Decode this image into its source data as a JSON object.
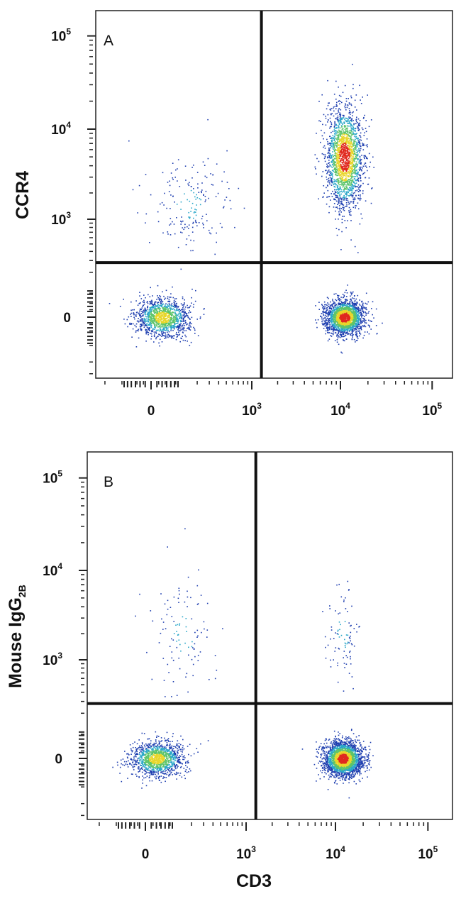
{
  "chart_data": [
    {
      "panel": "A",
      "type": "scatter",
      "subtype": "flow-cytometry-density-dot-plot",
      "xlabel": "",
      "ylabel": "CCR4",
      "x_scale": "biexponential",
      "y_scale": "biexponential",
      "x_ticks": [
        {
          "value": 0,
          "base": "0",
          "exp": ""
        },
        {
          "value": 1000,
          "base": "10",
          "exp": "3"
        },
        {
          "value": 10000,
          "base": "10",
          "exp": "4"
        },
        {
          "value": 100000,
          "base": "10",
          "exp": "5"
        }
      ],
      "y_ticks": [
        {
          "value": 0,
          "base": "0",
          "exp": ""
        },
        {
          "value": 1000,
          "base": "10",
          "exp": "3"
        },
        {
          "value": 10000,
          "base": "10",
          "exp": "4"
        },
        {
          "value": 100000,
          "base": "10",
          "exp": "5"
        }
      ],
      "quadrant_gate": {
        "x": 1300,
        "y": 280
      },
      "populations": [
        {
          "name": "CD3- CCR4-",
          "center": [
            30,
            0
          ],
          "x_spread": 0.6,
          "y_spread": 0.45,
          "n": 1300
        },
        {
          "name": "CD3+ CCR4-",
          "center": [
            11000,
            0
          ],
          "x_spread": 0.45,
          "y_spread": 0.4,
          "n": 2100
        },
        {
          "name": "CD3+ CCR4+",
          "center": [
            11000,
            5000
          ],
          "x_spread": 0.45,
          "y_spread": 1.2,
          "n": 2000
        },
        {
          "name": "CD3- CCR4+",
          "center": [
            150,
            1500
          ],
          "x_spread": 0.9,
          "y_spread": 1.1,
          "n": 180
        }
      ]
    },
    {
      "panel": "B",
      "type": "scatter",
      "subtype": "flow-cytometry-density-dot-plot",
      "xlabel": "CD3",
      "ylabel": "Mouse IgG",
      "ylabel_sub": "2B",
      "x_scale": "biexponential",
      "y_scale": "biexponential",
      "x_ticks": [
        {
          "value": 0,
          "base": "0",
          "exp": ""
        },
        {
          "value": 1000,
          "base": "10",
          "exp": "3"
        },
        {
          "value": 10000,
          "base": "10",
          "exp": "4"
        },
        {
          "value": 100000,
          "base": "10",
          "exp": "5"
        }
      ],
      "y_ticks": [
        {
          "value": 0,
          "base": "0",
          "exp": ""
        },
        {
          "value": 1000,
          "base": "10",
          "exp": "3"
        },
        {
          "value": 10000,
          "base": "10",
          "exp": "4"
        },
        {
          "value": 100000,
          "base": "10",
          "exp": "5"
        }
      ],
      "quadrant_gate": {
        "x": 1300,
        "y": 280
      },
      "populations": [
        {
          "name": "CD3- isotype-",
          "center": [
            30,
            0
          ],
          "x_spread": 0.6,
          "y_spread": 0.4,
          "n": 1300
        },
        {
          "name": "CD3+ isotype-",
          "center": [
            12000,
            0
          ],
          "x_spread": 0.45,
          "y_spread": 0.4,
          "n": 2400
        },
        {
          "name": "CD3+ isotype+",
          "center": [
            12000,
            2000
          ],
          "x_spread": 0.4,
          "y_spread": 1.2,
          "n": 90
        },
        {
          "name": "CD3- isotype+",
          "center": [
            150,
            2000
          ],
          "x_spread": 0.7,
          "y_spread": 1.3,
          "n": 110
        }
      ]
    }
  ],
  "colors": {
    "low_density": "#1f3fb0",
    "mid_low_density": "#2aa7c9",
    "mid_density": "#5cc46a",
    "high_density": "#e8d62a",
    "peak_density": "#e0281f",
    "axis": "#111111"
  }
}
